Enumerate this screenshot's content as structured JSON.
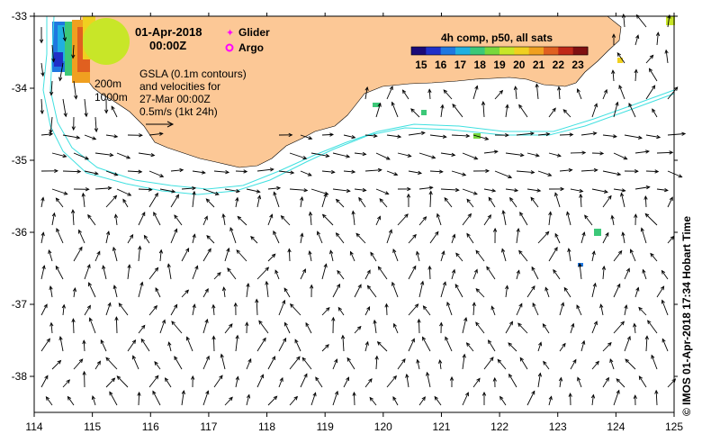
{
  "title": {
    "date": "01-Apr-2018",
    "time": "00:00Z"
  },
  "legend": {
    "glider_label": "Glider",
    "argo_label": "Argo",
    "glider_color": "#ff00ff",
    "argo_color": "#ff00ff"
  },
  "depth_labels": {
    "shallow": "200m",
    "deep": "1000m"
  },
  "gsla_note": {
    "line1": "GSLA (0.1m contours)",
    "line2": "and velocities for",
    "line3": "27-Mar 00:00Z",
    "line4": "0.5m/s (1kt 24h)"
  },
  "sst_colorbar": {
    "title": "4h comp, p50, all sats",
    "tick_labels": [
      "15",
      "16",
      "17",
      "18",
      "19",
      "20",
      "21",
      "22",
      "23"
    ],
    "min": 14.5,
    "max": 23.5,
    "colors": [
      "#1a0a78",
      "#2030c8",
      "#1f78e0",
      "#20b0e0",
      "#3cc878",
      "#78d83c",
      "#c8e628",
      "#f0d020",
      "#f0a020",
      "#e06020",
      "#c02818",
      "#801010"
    ]
  },
  "credit": "© IMOS 01-Apr-2018 17:34 Hobart Time",
  "axes": {
    "x_ticks": [
      "114",
      "115",
      "116",
      "117",
      "118",
      "119",
      "120",
      "121",
      "122",
      "123",
      "124",
      "125"
    ],
    "y_ticks": [
      "-33",
      "-34",
      "-35",
      "-36",
      "-37",
      "-38"
    ],
    "lon_range": [
      114,
      125
    ],
    "lat_range": [
      -38.5,
      -33
    ]
  },
  "colors": {
    "land": "#fcc896",
    "isobath": "#40e0e0",
    "arrow": "#000000"
  }
}
